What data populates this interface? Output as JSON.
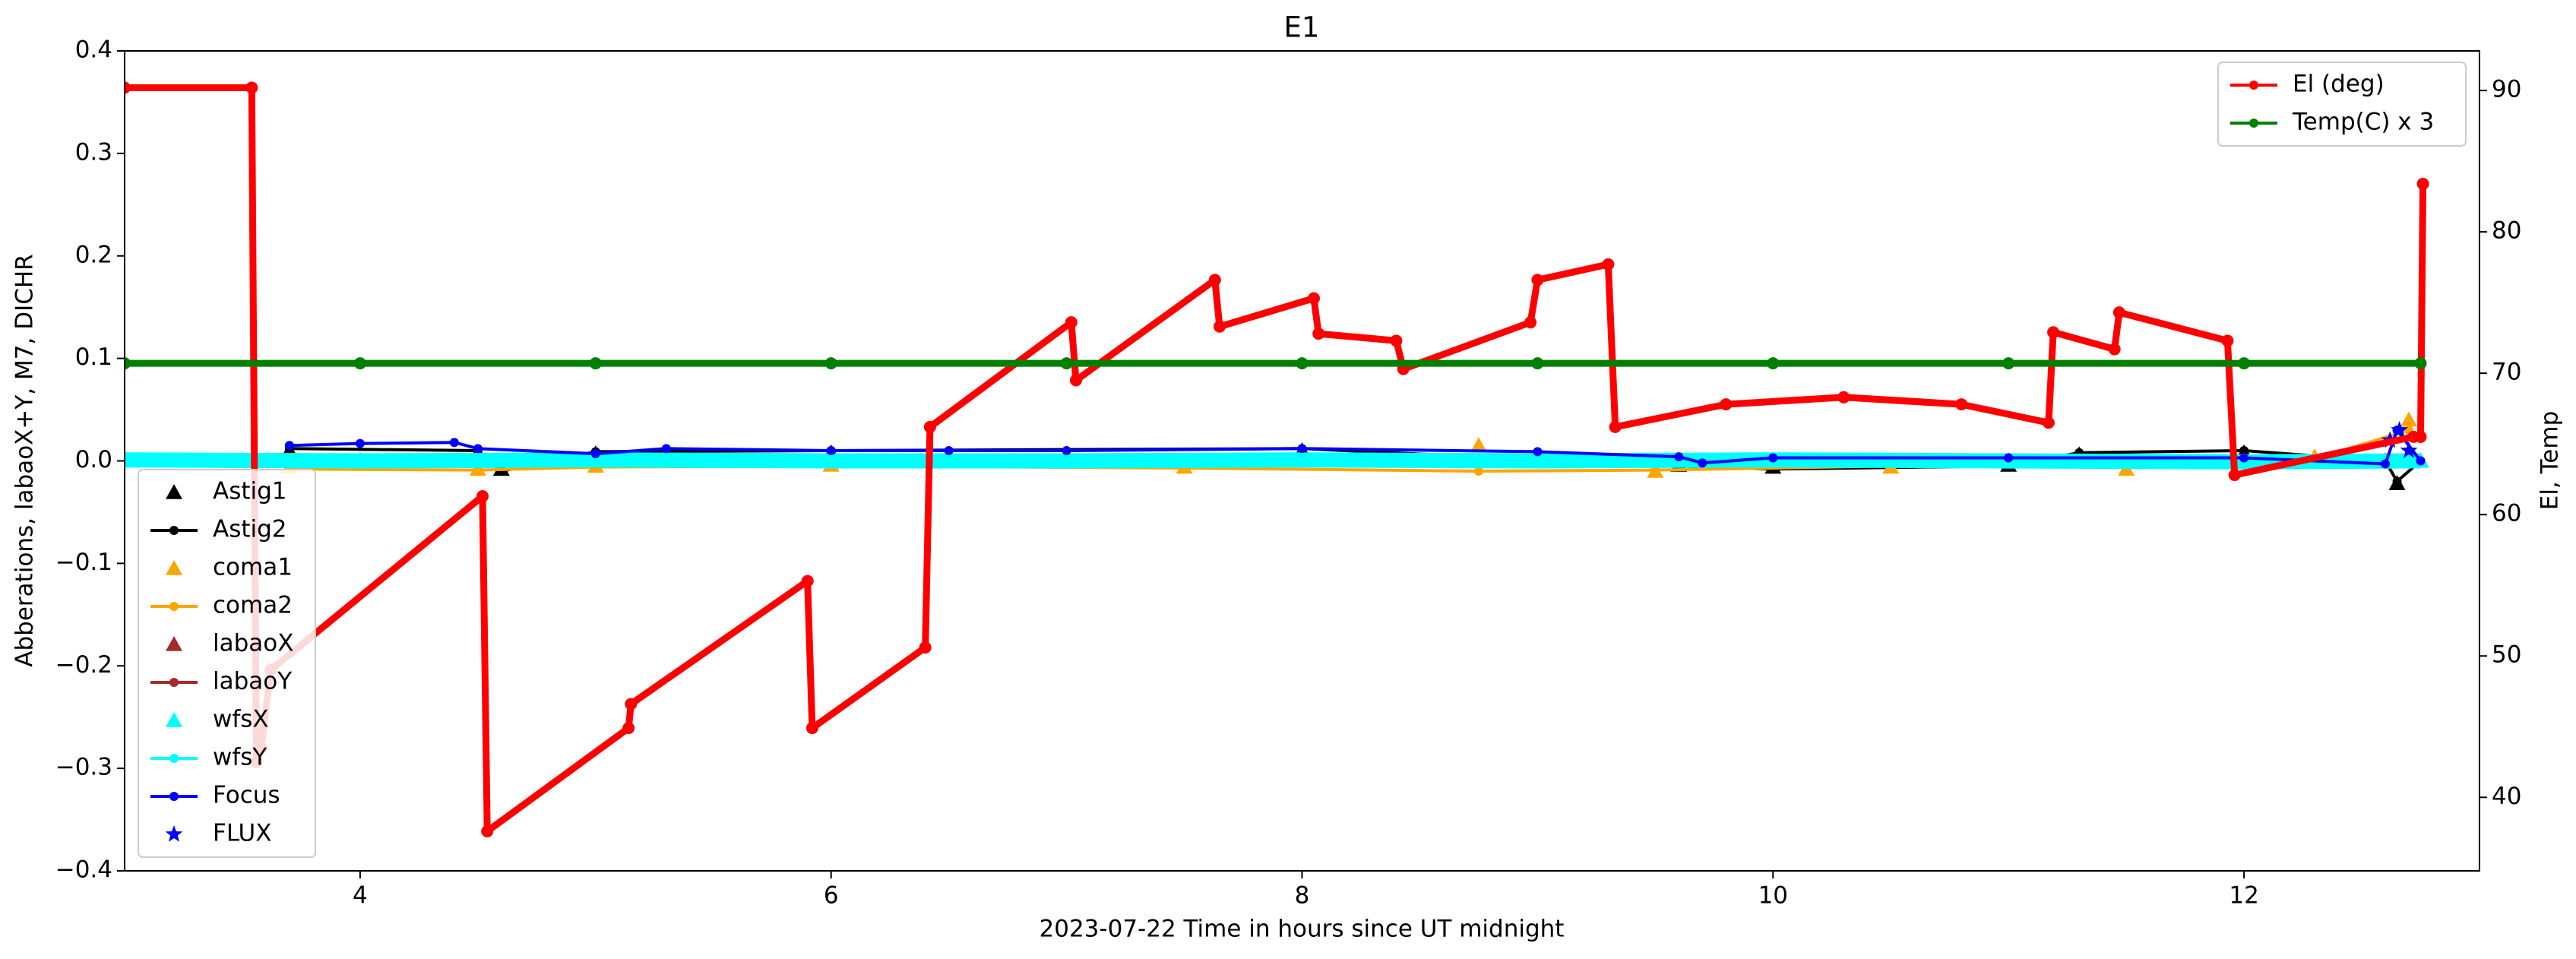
{
  "chart_data": {
    "type": "line",
    "title": "E1",
    "x_label": "2023-07-22  Time in hours since UT midnight",
    "y_label": "Abberations, labaoX+Y, M7, DICHR",
    "y2_label": "El, Temp",
    "xlim": [
      3.0,
      13.0
    ],
    "xticks": [
      4,
      6,
      8,
      10,
      12
    ],
    "ylim": [
      -0.4,
      0.4
    ],
    "yticks": [
      {
        "value": -0.4,
        "label": "−0.4"
      },
      {
        "value": -0.3,
        "label": "−0.3"
      },
      {
        "value": -0.2,
        "label": "−0.2"
      },
      {
        "value": -0.1,
        "label": "−0.1"
      },
      {
        "value": 0,
        "label": "0.0"
      },
      0.1,
      0.2,
      0.3,
      0.4
    ],
    "y2lim": [
      34.8,
      92.8
    ],
    "y2ticks": [
      40,
      50,
      60,
      70,
      80,
      90
    ],
    "legend_loc": "lower left",
    "y2_legend_loc": "upper right",
    "series": [
      {
        "name": "Astig1",
        "color": "#000000",
        "marker": "triangle",
        "line": false,
        "x": [
          3.7,
          4.5,
          4.6,
          5.0,
          6.0,
          8.0,
          9.6,
          10.0,
          11.0,
          11.3,
          12.0,
          12.6,
          12.65,
          12.75
        ],
        "values": [
          0.01,
          0.008,
          -0.008,
          0.007,
          0.008,
          0.01,
          -0.004,
          -0.006,
          -0.004,
          0.006,
          0.008,
          0.0,
          -0.022,
          0.0
        ]
      },
      {
        "name": "Astig2",
        "color": "#000000",
        "marker": "dot",
        "line": true,
        "x": [
          3.7,
          4.5,
          4.6,
          5.0,
          6.0,
          8.0,
          9.6,
          10.0,
          11.0,
          11.3,
          12.0,
          12.6,
          12.65,
          12.75
        ],
        "values": [
          0.012,
          0.01,
          -0.01,
          0.009,
          0.01,
          0.012,
          -0.005,
          -0.008,
          -0.005,
          0.008,
          0.01,
          0.0,
          -0.02,
          0.0
        ]
      },
      {
        "name": "coma1",
        "color": "#ffa500",
        "marker": "triangle",
        "line": false,
        "x": [
          3.7,
          4.5,
          5.0,
          6.0,
          7.5,
          8.75,
          9.5,
          10.5,
          11.5,
          12.3,
          12.7
        ],
        "values": [
          -0.006,
          -0.008,
          -0.005,
          -0.004,
          -0.006,
          0.015,
          -0.01,
          -0.006,
          -0.008,
          0.004,
          0.04
        ]
      },
      {
        "name": "coma2",
        "color": "#ffa500",
        "marker": "dot",
        "line": true,
        "x": [
          3.7,
          4.5,
          5.0,
          6.0,
          7.5,
          8.75,
          9.5,
          10.5,
          11.5,
          12.3,
          12.7
        ],
        "values": [
          -0.008,
          -0.009,
          -0.006,
          -0.005,
          -0.007,
          -0.01,
          -0.009,
          -0.005,
          -0.006,
          0.002,
          0.03
        ]
      },
      {
        "name": "labaoX",
        "color": "#a52a2a",
        "marker": "triangle",
        "line": false,
        "x": [
          3.7,
          5.0,
          7.0,
          9.0,
          11.0,
          12.7
        ],
        "values": [
          0.0,
          0.0,
          0.0,
          0.0,
          0.0,
          0.0
        ]
      },
      {
        "name": "labaoY",
        "color": "#a52a2a",
        "marker": "dot",
        "line": true,
        "x": [
          3.7,
          5.0,
          7.0,
          9.0,
          11.0,
          12.7
        ],
        "values": [
          0.0,
          0.0,
          0.0,
          0.0,
          0.0,
          0.0
        ]
      },
      {
        "name": "wfsX",
        "color": "#00ffff",
        "marker": "triangle",
        "line": false,
        "x": [
          3.0,
          4,
          5,
          6,
          7,
          8,
          9,
          10,
          11,
          12,
          12.75
        ],
        "values": [
          0.002,
          0.001,
          0.0,
          0.001,
          0.001,
          0.0,
          0.001,
          0.0,
          -0.001,
          0.0,
          0.0
        ]
      },
      {
        "name": "wfsY",
        "color": "#00ffff",
        "marker": "dot",
        "line": true,
        "x": [
          3.0,
          4,
          5,
          6,
          7,
          8,
          9,
          10,
          11,
          12,
          12.75
        ],
        "values": [
          0.001,
          0.0,
          0.001,
          0.0,
          0.0,
          0.001,
          0.0,
          0.001,
          0.0,
          -0.001,
          0.0
        ]
      },
      {
        "name": "Focus",
        "color": "#0000ff",
        "marker": "dot",
        "line": true,
        "x": [
          3.7,
          4.0,
          4.4,
          4.5,
          5.0,
          5.3,
          6.0,
          6.5,
          7.0,
          8.0,
          9.0,
          9.6,
          9.7,
          10.0,
          11.0,
          12.0,
          12.6,
          12.65,
          12.75
        ],
        "values": [
          0.015,
          0.017,
          0.018,
          0.012,
          0.007,
          0.012,
          0.01,
          0.01,
          0.01,
          0.012,
          0.009,
          0.004,
          -0.002,
          0.003,
          0.003,
          0.003,
          -0.003,
          0.03,
          0.0
        ]
      },
      {
        "name": "FLUX",
        "color": "#0000ff",
        "marker": "star",
        "line": false,
        "x": [
          12.62,
          12.66,
          12.7
        ],
        "values": [
          0.02,
          0.03,
          0.01
        ]
      },
      {
        "name": "El (deg)",
        "color": "#ff0000",
        "marker": "dot",
        "line": true,
        "axis": "y2",
        "x": [
          3.0,
          3.54,
          3.56,
          3.58,
          3.62,
          4.52,
          4.54,
          5.14,
          5.15,
          5.9,
          5.92,
          6.4,
          6.42,
          7.02,
          7.04,
          7.63,
          7.65,
          8.05,
          8.07,
          8.4,
          8.43,
          8.97,
          9.0,
          9.3,
          9.33,
          9.8,
          10.3,
          10.8,
          11.17,
          11.19,
          11.45,
          11.47,
          11.93,
          11.96,
          12.72,
          12.75,
          12.76
        ],
        "values": [
          90.2,
          90.2,
          42.5,
          43.5,
          49,
          61.3,
          37.6,
          44.9,
          46.6,
          55.3,
          44.9,
          50.6,
          66.2,
          73.6,
          69.5,
          76.6,
          73.3,
          75.3,
          72.8,
          72.3,
          70.3,
          73.6,
          76.6,
          77.7,
          66.2,
          67.8,
          68.3,
          67.8,
          66.5,
          72.9,
          71.7,
          74.3,
          72.3,
          62.8,
          65.5,
          65.5,
          83.4
        ]
      },
      {
        "name": "Temp(C) x 3",
        "color": "#008000",
        "marker": "dot",
        "line": true,
        "axis": "y2",
        "x": [
          3.0,
          4,
          5,
          6,
          7,
          8,
          9,
          10,
          11,
          12,
          12.75
        ],
        "values": [
          70.7,
          70.7,
          70.7,
          70.7,
          70.7,
          70.7,
          70.7,
          70.7,
          70.7,
          70.7,
          70.7
        ]
      }
    ]
  }
}
